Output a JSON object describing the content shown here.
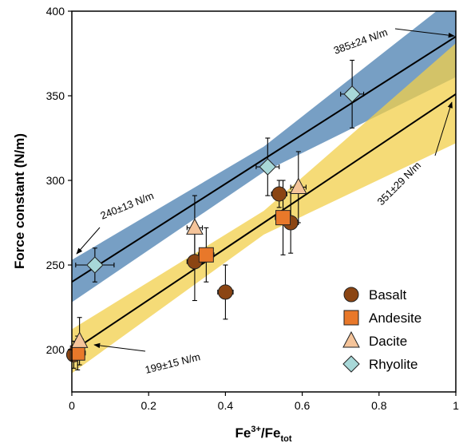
{
  "chart_data": {
    "type": "scatter",
    "y_label": "Force constant (N/m)",
    "x_label": {
      "base": "Fe",
      "sup": "3+",
      "mid": "/Fe",
      "sub": "tot"
    },
    "xlim": [
      0,
      1
    ],
    "ylim": [
      175,
      400
    ],
    "xticks": [
      0,
      0.2,
      0.4,
      0.6,
      0.8,
      1
    ],
    "yticks": [
      200,
      250,
      300,
      350,
      400
    ],
    "legend": "lower right",
    "series": [
      {
        "name": "Basalt",
        "marker": "circle",
        "color": "#8b4513",
        "x": [
          0.005,
          0.32,
          0.4,
          0.54,
          0.57
        ],
        "y": [
          197,
          252,
          234,
          292,
          275
        ],
        "yerr": [
          8,
          23,
          16,
          8,
          18
        ],
        "xerr": [
          0.01,
          0.02,
          0.02,
          0.02,
          0.02
        ]
      },
      {
        "name": "Andesite",
        "marker": "square",
        "color": "#e8782a",
        "x": [
          0.015,
          0.35,
          0.55
        ],
        "y": [
          198,
          256,
          278
        ],
        "yerr": [
          10,
          16,
          22
        ],
        "xerr": [
          0.02,
          0.02,
          0.02
        ]
      },
      {
        "name": "Dacite",
        "marker": "triangle",
        "color": "#f5c49a",
        "x": [
          0.02,
          0.32,
          0.59
        ],
        "y": [
          205,
          272,
          296
        ],
        "yerr": [
          14,
          19,
          21
        ],
        "xerr": [
          0.01,
          0.02,
          0.02
        ]
      },
      {
        "name": "Rhyolite",
        "marker": "diamond",
        "color": "#a8d8d8",
        "x": [
          0.06,
          0.51,
          0.73
        ],
        "y": [
          250,
          308,
          351
        ],
        "yerr": [
          10,
          17,
          20
        ],
        "xerr": [
          0.05,
          0.03,
          0.03
        ]
      }
    ],
    "fits": [
      {
        "color": "#4a7fb0",
        "x": [
          0,
          0.5,
          1
        ],
        "y": [
          240,
          312.5,
          385
        ],
        "lower": [
          228,
          305,
          361
        ],
        "upper": [
          253,
          320,
          409
        ]
      },
      {
        "color": "#f2cf4a",
        "x": [
          0,
          0.5,
          1
        ],
        "y": [
          199,
          275,
          351
        ],
        "lower": [
          186,
          268,
          322
        ],
        "upper": [
          212,
          282,
          381
        ]
      }
    ],
    "annotations": [
      "385±24 N/m",
      "240±13 N/m",
      "351±29 N/m",
      "199±15 N/m"
    ]
  }
}
